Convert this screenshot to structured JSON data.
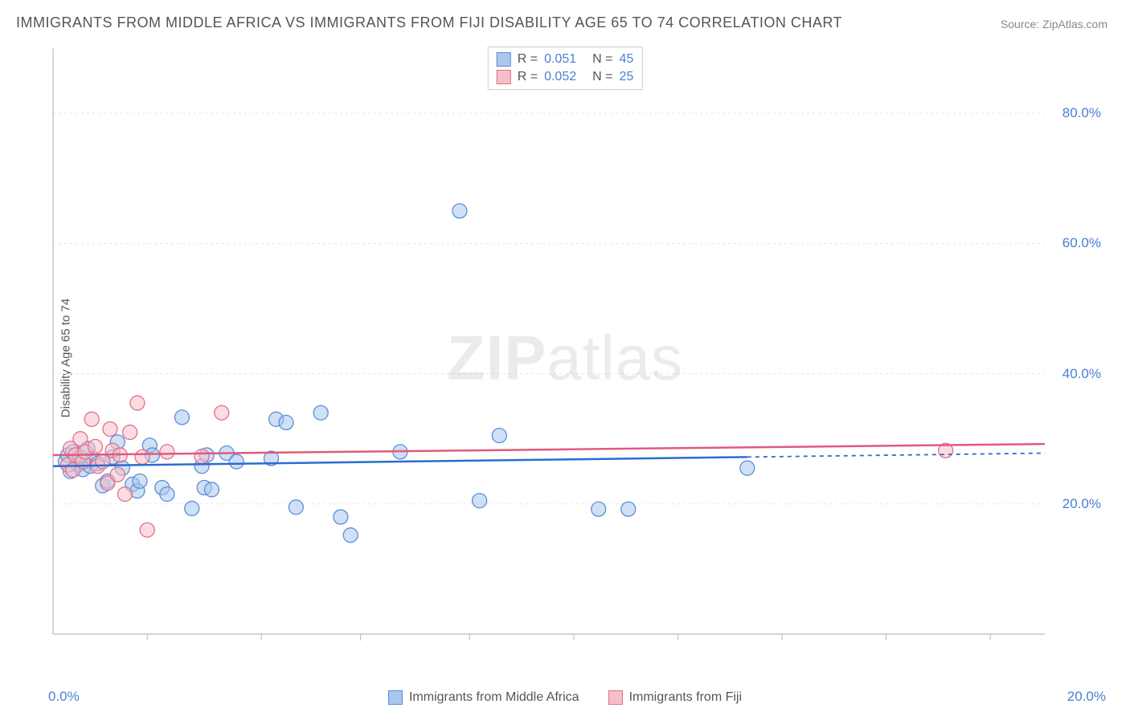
{
  "title": "IMMIGRANTS FROM MIDDLE AFRICA VS IMMIGRANTS FROM FIJI DISABILITY AGE 65 TO 74 CORRELATION CHART",
  "source_prefix": "Source: ",
  "source_name": "ZipAtlas.com",
  "ylabel": "Disability Age 65 to 74",
  "watermark_bold": "ZIP",
  "watermark_rest": "atlas",
  "chart": {
    "type": "scatter",
    "xlim": [
      0,
      20
    ],
    "ylim": [
      0,
      90
    ],
    "ytick_values": [
      20,
      40,
      60,
      80
    ],
    "ytick_labels": [
      "20.0%",
      "40.0%",
      "60.0%",
      "80.0%"
    ],
    "x_origin_label": "0.0%",
    "x_max_label": "20.0%",
    "x_minor_ticks": [
      1.9,
      4.2,
      6.2,
      8.4,
      10.5,
      12.6,
      14.7,
      16.8,
      18.9
    ],
    "grid_color": "#e5e5e5",
    "axis_color": "#bbbbbb",
    "background_color": "#ffffff",
    "series": [
      {
        "name": "Immigrants from Middle Africa",
        "fill": "#a9c6ec",
        "stroke": "#5b8fd6",
        "marker_radius": 9,
        "fill_opacity": 0.55,
        "R": "0.051",
        "N": "45",
        "trend": {
          "y_start": 25.8,
          "y_end": 27.8,
          "solid_end_x": 14.0,
          "color": "#2b6cd4"
        },
        "points": [
          [
            0.25,
            26.5
          ],
          [
            0.3,
            27.5
          ],
          [
            0.35,
            25
          ],
          [
            0.4,
            28
          ],
          [
            0.5,
            26
          ],
          [
            0.55,
            27.2
          ],
          [
            0.6,
            25.3
          ],
          [
            0.7,
            28.5
          ],
          [
            0.75,
            25.8
          ],
          [
            0.8,
            27
          ],
          [
            0.9,
            26.2
          ],
          [
            1.0,
            22.8
          ],
          [
            1.1,
            23.5
          ],
          [
            1.2,
            27.2
          ],
          [
            1.3,
            29.5
          ],
          [
            1.4,
            25.5
          ],
          [
            1.6,
            23
          ],
          [
            1.7,
            22
          ],
          [
            1.75,
            23.5
          ],
          [
            1.95,
            29
          ],
          [
            2.0,
            27.5
          ],
          [
            2.2,
            22.5
          ],
          [
            2.3,
            21.5
          ],
          [
            2.6,
            33.3
          ],
          [
            2.8,
            19.3
          ],
          [
            3.0,
            25.8
          ],
          [
            3.05,
            22.5
          ],
          [
            3.1,
            27.5
          ],
          [
            3.2,
            22.2
          ],
          [
            3.5,
            27.8
          ],
          [
            3.7,
            26.5
          ],
          [
            4.4,
            27
          ],
          [
            4.5,
            33
          ],
          [
            4.7,
            32.5
          ],
          [
            4.9,
            19.5
          ],
          [
            5.4,
            34
          ],
          [
            5.8,
            18
          ],
          [
            6.0,
            15.2
          ],
          [
            7.0,
            28
          ],
          [
            8.2,
            65
          ],
          [
            8.6,
            20.5
          ],
          [
            9.0,
            30.5
          ],
          [
            11.0,
            19.2
          ],
          [
            11.6,
            19.2
          ],
          [
            14.0,
            25.5
          ]
        ]
      },
      {
        "name": "Immigrants from Fiji",
        "fill": "#f5bfc9",
        "stroke": "#e36f8a",
        "marker_radius": 9,
        "fill_opacity": 0.55,
        "R": "0.052",
        "N": "25",
        "trend": {
          "y_start": 27.5,
          "y_end": 29.2,
          "solid_end_x": 20.0,
          "color": "#e05a82"
        },
        "points": [
          [
            0.3,
            26
          ],
          [
            0.35,
            28.5
          ],
          [
            0.4,
            25.2
          ],
          [
            0.45,
            27.5
          ],
          [
            0.55,
            30
          ],
          [
            0.6,
            26.5
          ],
          [
            0.65,
            28
          ],
          [
            0.78,
            33
          ],
          [
            0.85,
            28.8
          ],
          [
            0.9,
            25.8
          ],
          [
            1.0,
            26.5
          ],
          [
            1.1,
            23.2
          ],
          [
            1.15,
            31.5
          ],
          [
            1.2,
            28.2
          ],
          [
            1.3,
            24.5
          ],
          [
            1.35,
            27.5
          ],
          [
            1.45,
            21.5
          ],
          [
            1.55,
            31
          ],
          [
            1.7,
            35.5
          ],
          [
            1.8,
            27.2
          ],
          [
            1.9,
            16
          ],
          [
            2.3,
            28
          ],
          [
            3.0,
            27.3
          ],
          [
            3.4,
            34
          ],
          [
            18.0,
            28.2
          ]
        ]
      }
    ]
  },
  "legend_top": {
    "r_label": "R  =",
    "n_label": "N  ="
  },
  "bottom_legend": [
    {
      "label": "Immigrants from Middle Africa",
      "fill": "#a9c6ec",
      "stroke": "#5b8fd6"
    },
    {
      "label": "Immigrants from Fiji",
      "fill": "#f5bfc9",
      "stroke": "#e36f8a"
    }
  ]
}
